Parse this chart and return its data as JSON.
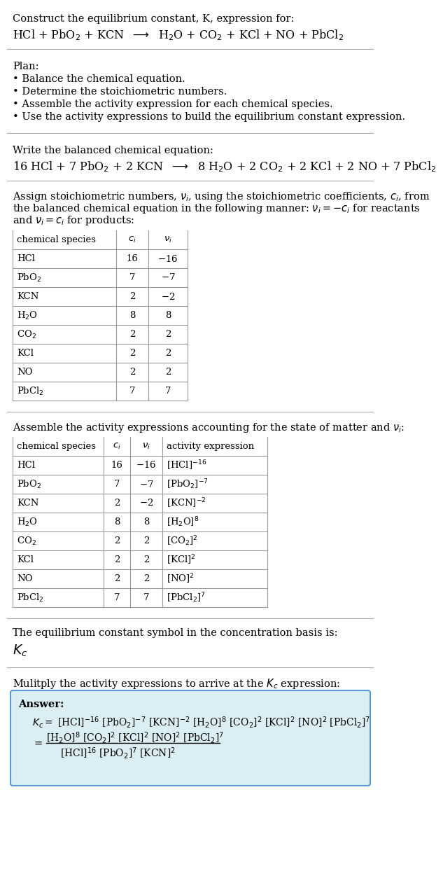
{
  "title_line1": "Construct the equilibrium constant, K, expression for:",
  "reaction_unbalanced": "HCl + PbO$_2$ + KCN  $\\longrightarrow$  H$_2$O + CO$_2$ + KCl + NO + PbCl$_2$",
  "plan_header": "Plan:",
  "plan_items": [
    "• Balance the chemical equation.",
    "• Determine the stoichiometric numbers.",
    "• Assemble the activity expression for each chemical species.",
    "• Use the activity expressions to build the equilibrium constant expression."
  ],
  "balanced_header": "Write the balanced chemical equation:",
  "reaction_balanced": "16 HCl + 7 PbO$_2$ + 2 KCN  $\\longrightarrow$  8 H$_2$O + 2 CO$_2$ + 2 KCl + 2 NO + 7 PbCl$_2$",
  "stoich_intro_lines": [
    "Assign stoichiometric numbers, $\\nu_i$, using the stoichiometric coefficients, $c_i$, from",
    "the balanced chemical equation in the following manner: $\\nu_i = -c_i$ for reactants",
    "and $\\nu_i = c_i$ for products:"
  ],
  "table1_col0_header": "chemical species",
  "table1_col1_header": "$c_i$",
  "table1_col2_header": "$\\nu_i$",
  "table1_data": [
    [
      "HCl",
      "16",
      "$-$16"
    ],
    [
      "PbO$_2$",
      "7",
      "$-$7"
    ],
    [
      "KCN",
      "2",
      "$-$2"
    ],
    [
      "H$_2$O",
      "8",
      "8"
    ],
    [
      "CO$_2$",
      "2",
      "2"
    ],
    [
      "KCl",
      "2",
      "2"
    ],
    [
      "NO",
      "2",
      "2"
    ],
    [
      "PbCl$_2$",
      "7",
      "7"
    ]
  ],
  "activity_intro": "Assemble the activity expressions accounting for the state of matter and $\\nu_i$:",
  "table2_col0_header": "chemical species",
  "table2_col1_header": "$c_i$",
  "table2_col2_header": "$\\nu_i$",
  "table2_col3_header": "activity expression",
  "table2_data": [
    [
      "HCl",
      "16",
      "$-$16",
      "[HCl]$^{-16}$"
    ],
    [
      "PbO$_2$",
      "7",
      "$-$7",
      "[PbO$_2$]$^{-7}$"
    ],
    [
      "KCN",
      "2",
      "$-$2",
      "[KCN]$^{-2}$"
    ],
    [
      "H$_2$O",
      "8",
      "8",
      "[H$_2$O]$^{8}$"
    ],
    [
      "CO$_2$",
      "2",
      "2",
      "[CO$_2$]$^{2}$"
    ],
    [
      "KCl",
      "2",
      "2",
      "[KCl]$^{2}$"
    ],
    [
      "NO",
      "2",
      "2",
      "[NO]$^{2}$"
    ],
    [
      "PbCl$_2$",
      "7",
      "7",
      "[PbCl$_2$]$^{7}$"
    ]
  ],
  "kc_intro": "The equilibrium constant symbol in the concentration basis is:",
  "kc_symbol": "$K_c$",
  "multiply_intro": "Mulitply the activity expressions to arrive at the $K_c$ expression:",
  "answer_label": "Answer:",
  "answer_line1": "$K_c = $ [HCl]$^{-16}$ [PbO$_2$]$^{-7}$ [KCN]$^{-2}$ [H$_2$O]$^{8}$ [CO$_2$]$^{2}$ [KCl]$^{2}$ [NO]$^{2}$ [PbCl$_2$]$^{7}$",
  "answer_eq": "$= $",
  "answer_numerator": "[H$_2$O]$^{8}$ [CO$_2$]$^{2}$ [KCl]$^{2}$ [NO]$^{2}$ [PbCl$_2$]$^{7}$",
  "answer_denominator": "[HCl]$^{16}$ [PbO$_2$]$^{7}$ [KCN]$^{2}$",
  "bg_color": "#ffffff",
  "table_border_color": "#999999",
  "answer_bg_color": "#daeef3",
  "answer_border_color": "#5b9bd5"
}
